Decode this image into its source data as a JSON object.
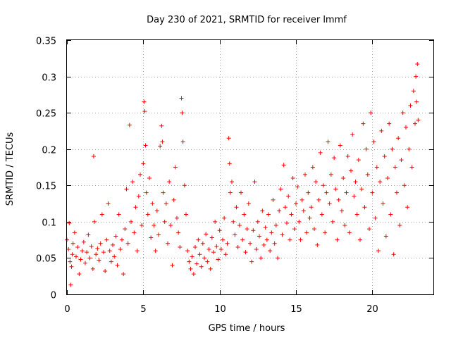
{
  "chart_data": {
    "type": "scatter",
    "title": "Day 230 of 2021, SRMTID for receiver lmmf",
    "xlabel": "GPS time / hours",
    "ylabel": "SRMTID / TECUs",
    "xlim": [
      0,
      24
    ],
    "ylim": [
      0,
      0.35
    ],
    "x_ticks": [
      0,
      5,
      10,
      15,
      20
    ],
    "x_tick_labels": [
      "0",
      "5",
      "10",
      "15",
      "20"
    ],
    "y_ticks": [
      0,
      0.05,
      0.1,
      0.15,
      0.2,
      0.25,
      0.3,
      0.35
    ],
    "y_tick_labels": [
      "0",
      "0.05",
      "0.1",
      "0.15",
      "0.2",
      "0.25",
      "0.3",
      "0.35"
    ],
    "grid": true,
    "marker": "plus",
    "color": "#ff0000",
    "series": [
      {
        "name": "SRMTID",
        "points": [
          [
            0.0,
            0.075
          ],
          [
            0.1,
            0.062
          ],
          [
            0.15,
            0.098
          ],
          [
            0.2,
            0.045
          ],
          [
            0.25,
            0.013
          ],
          [
            0.3,
            0.038
          ],
          [
            0.35,
            0.055
          ],
          [
            0.4,
            0.07
          ],
          [
            0.5,
            0.085
          ],
          [
            0.6,
            0.052
          ],
          [
            0.7,
            0.065
          ],
          [
            0.8,
            0.028
          ],
          [
            0.9,
            0.048
          ],
          [
            1.0,
            0.06
          ],
          [
            1.1,
            0.072
          ],
          [
            1.2,
            0.043
          ],
          [
            1.3,
            0.058
          ],
          [
            1.4,
            0.082
          ],
          [
            1.5,
            0.05
          ],
          [
            1.6,
            0.066
          ],
          [
            1.7,
            0.035
          ],
          [
            1.75,
            0.19
          ],
          [
            1.8,
            0.1
          ],
          [
            1.9,
            0.055
          ],
          [
            2.0,
            0.063
          ],
          [
            2.1,
            0.047
          ],
          [
            2.2,
            0.07
          ],
          [
            2.3,
            0.11
          ],
          [
            2.4,
            0.058
          ],
          [
            2.5,
            0.032
          ],
          [
            2.6,
            0.075
          ],
          [
            2.7,
            0.125
          ],
          [
            2.8,
            0.06
          ],
          [
            2.9,
            0.045
          ],
          [
            3.0,
            0.068
          ],
          [
            3.1,
            0.052
          ],
          [
            3.2,
            0.08
          ],
          [
            3.3,
            0.04
          ],
          [
            3.4,
            0.11
          ],
          [
            3.5,
            0.062
          ],
          [
            3.6,
            0.075
          ],
          [
            3.7,
            0.028
          ],
          [
            3.8,
            0.09
          ],
          [
            3.9,
            0.145
          ],
          [
            4.0,
            0.07
          ],
          [
            4.1,
            0.233
          ],
          [
            4.2,
            0.1
          ],
          [
            4.3,
            0.155
          ],
          [
            4.4,
            0.085
          ],
          [
            4.5,
            0.12
          ],
          [
            4.6,
            0.06
          ],
          [
            4.7,
            0.135
          ],
          [
            4.8,
            0.165
          ],
          [
            4.9,
            0.095
          ],
          [
            5.0,
            0.18
          ],
          [
            5.05,
            0.265
          ],
          [
            5.1,
            0.252
          ],
          [
            5.15,
            0.205
          ],
          [
            5.2,
            0.14
          ],
          [
            5.3,
            0.11
          ],
          [
            5.4,
            0.16
          ],
          [
            5.5,
            0.078
          ],
          [
            5.6,
            0.125
          ],
          [
            5.7,
            0.095
          ],
          [
            5.8,
            0.06
          ],
          [
            5.9,
            0.115
          ],
          [
            6.0,
            0.082
          ],
          [
            6.1,
            0.204
          ],
          [
            6.2,
            0.232
          ],
          [
            6.25,
            0.21
          ],
          [
            6.3,
            0.14
          ],
          [
            6.4,
            0.1
          ],
          [
            6.5,
            0.125
          ],
          [
            6.6,
            0.07
          ],
          [
            6.7,
            0.155
          ],
          [
            6.8,
            0.095
          ],
          [
            6.9,
            0.04
          ],
          [
            7.0,
            0.13
          ],
          [
            7.1,
            0.175
          ],
          [
            7.2,
            0.105
          ],
          [
            7.3,
            0.085
          ],
          [
            7.4,
            0.065
          ],
          [
            7.5,
            0.27
          ],
          [
            7.55,
            0.25
          ],
          [
            7.6,
            0.21
          ],
          [
            7.7,
            0.15
          ],
          [
            7.8,
            0.11
          ],
          [
            7.9,
            0.06
          ],
          [
            8.0,
            0.045
          ],
          [
            8.1,
            0.035
          ],
          [
            8.2,
            0.052
          ],
          [
            8.3,
            0.028
          ],
          [
            8.4,
            0.065
          ],
          [
            8.5,
            0.042
          ],
          [
            8.6,
            0.075
          ],
          [
            8.7,
            0.055
          ],
          [
            8.8,
            0.038
          ],
          [
            8.9,
            0.07
          ],
          [
            9.0,
            0.05
          ],
          [
            9.1,
            0.083
          ],
          [
            9.2,
            0.045
          ],
          [
            9.3,
            0.062
          ],
          [
            9.4,
            0.035
          ],
          [
            9.5,
            0.078
          ],
          [
            9.6,
            0.058
          ],
          [
            9.7,
            0.1
          ],
          [
            9.8,
            0.066
          ],
          [
            9.9,
            0.048
          ],
          [
            10.0,
            0.088
          ],
          [
            10.1,
            0.062
          ],
          [
            10.2,
            0.075
          ],
          [
            10.3,
            0.105
          ],
          [
            10.4,
            0.055
          ],
          [
            10.5,
            0.07
          ],
          [
            10.6,
            0.215
          ],
          [
            10.65,
            0.18
          ],
          [
            10.7,
            0.14
          ],
          [
            10.8,
            0.155
          ],
          [
            10.9,
            0.1
          ],
          [
            11.0,
            0.082
          ],
          [
            11.1,
            0.12
          ],
          [
            11.2,
            0.065
          ],
          [
            11.3,
            0.095
          ],
          [
            11.4,
            0.14
          ],
          [
            11.5,
            0.075
          ],
          [
            11.6,
            0.11
          ],
          [
            11.7,
            0.058
          ],
          [
            11.8,
            0.09
          ],
          [
            11.9,
            0.125
          ],
          [
            12.0,
            0.07
          ],
          [
            12.1,
            0.045
          ],
          [
            12.2,
            0.088
          ],
          [
            12.3,
            0.155
          ],
          [
            12.4,
            0.062
          ],
          [
            12.5,
            0.1
          ],
          [
            12.6,
            0.08
          ],
          [
            12.7,
            0.05
          ],
          [
            12.8,
            0.115
          ],
          [
            12.9,
            0.068
          ],
          [
            13.0,
            0.092
          ],
          [
            13.1,
            0.075
          ],
          [
            13.2,
            0.11
          ],
          [
            13.3,
            0.06
          ],
          [
            13.4,
            0.085
          ],
          [
            13.5,
            0.13
          ],
          [
            13.6,
            0.07
          ],
          [
            13.7,
            0.095
          ],
          [
            13.8,
            0.05
          ],
          [
            13.9,
            0.115
          ],
          [
            14.0,
            0.145
          ],
          [
            14.1,
            0.082
          ],
          [
            14.2,
            0.178
          ],
          [
            14.3,
            0.12
          ],
          [
            14.4,
            0.098
          ],
          [
            14.5,
            0.135
          ],
          [
            14.6,
            0.075
          ],
          [
            14.7,
            0.11
          ],
          [
            14.8,
            0.16
          ],
          [
            14.9,
            0.09
          ],
          [
            15.0,
            0.125
          ],
          [
            15.1,
            0.148
          ],
          [
            15.2,
            0.1
          ],
          [
            15.3,
            0.075
          ],
          [
            15.4,
            0.13
          ],
          [
            15.5,
            0.115
          ],
          [
            15.6,
            0.165
          ],
          [
            15.7,
            0.085
          ],
          [
            15.8,
            0.14
          ],
          [
            15.9,
            0.105
          ],
          [
            16.0,
            0.12
          ],
          [
            16.1,
            0.175
          ],
          [
            16.2,
            0.09
          ],
          [
            16.3,
            0.155
          ],
          [
            16.4,
            0.068
          ],
          [
            16.5,
            0.13
          ],
          [
            16.6,
            0.195
          ],
          [
            16.7,
            0.11
          ],
          [
            16.8,
            0.15
          ],
          [
            16.9,
            0.085
          ],
          [
            17.0,
            0.14
          ],
          [
            17.1,
            0.21
          ],
          [
            17.2,
            0.125
          ],
          [
            17.3,
            0.165
          ],
          [
            17.4,
            0.1
          ],
          [
            17.5,
            0.188
          ],
          [
            17.6,
            0.145
          ],
          [
            17.7,
            0.075
          ],
          [
            17.8,
            0.13
          ],
          [
            17.9,
            0.205
          ],
          [
            18.0,
            0.115
          ],
          [
            18.1,
            0.16
          ],
          [
            18.2,
            0.095
          ],
          [
            18.3,
            0.14
          ],
          [
            18.4,
            0.19
          ],
          [
            18.5,
            0.085
          ],
          [
            18.6,
            0.17
          ],
          [
            18.7,
            0.22
          ],
          [
            18.8,
            0.135
          ],
          [
            18.9,
            0.155
          ],
          [
            19.0,
            0.11
          ],
          [
            19.1,
            0.185
          ],
          [
            19.2,
            0.075
          ],
          [
            19.3,
            0.145
          ],
          [
            19.4,
            0.235
          ],
          [
            19.5,
            0.12
          ],
          [
            19.6,
            0.2
          ],
          [
            19.7,
            0.165
          ],
          [
            19.8,
            0.09
          ],
          [
            19.9,
            0.25
          ],
          [
            20.0,
            0.14
          ],
          [
            20.1,
            0.21
          ],
          [
            20.2,
            0.105
          ],
          [
            20.3,
            0.175
          ],
          [
            20.4,
            0.06
          ],
          [
            20.5,
            0.155
          ],
          [
            20.6,
            0.225
          ],
          [
            20.7,
            0.125
          ],
          [
            20.8,
            0.19
          ],
          [
            20.9,
            0.08
          ],
          [
            21.0,
            0.16
          ],
          [
            21.1,
            0.235
          ],
          [
            21.2,
            0.11
          ],
          [
            21.3,
            0.2
          ],
          [
            21.4,
            0.055
          ],
          [
            21.5,
            0.175
          ],
          [
            21.6,
            0.14
          ],
          [
            21.7,
            0.215
          ],
          [
            21.8,
            0.095
          ],
          [
            21.9,
            0.185
          ],
          [
            22.0,
            0.25
          ],
          [
            22.1,
            0.15
          ],
          [
            22.2,
            0.23
          ],
          [
            22.3,
            0.12
          ],
          [
            22.4,
            0.2
          ],
          [
            22.5,
            0.26
          ],
          [
            22.6,
            0.175
          ],
          [
            22.7,
            0.28
          ],
          [
            22.8,
            0.235
          ],
          [
            22.85,
            0.3
          ],
          [
            22.9,
            0.265
          ],
          [
            22.95,
            0.317
          ],
          [
            23.0,
            0.24
          ]
        ]
      }
    ]
  }
}
